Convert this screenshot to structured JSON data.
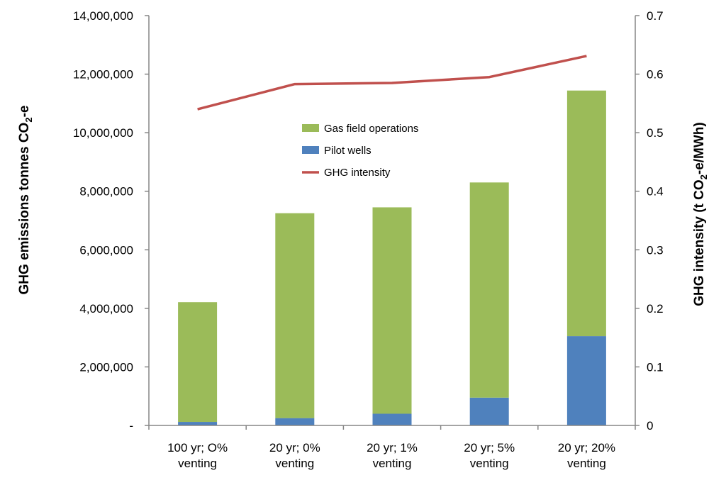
{
  "chart_data": {
    "type": "bar",
    "stacked": true,
    "categories": [
      [
        "100 yr; O%",
        "venting"
      ],
      [
        "20 yr; 0%",
        "venting"
      ],
      [
        "20 yr; 1%",
        "venting"
      ],
      [
        "20 yr; 5%",
        "venting"
      ],
      [
        "20 yr; 20%",
        "venting"
      ]
    ],
    "series": [
      {
        "name": "Pilot wells",
        "kind": "bar",
        "axis": "left",
        "color": "#4F81BD",
        "values": [
          120000,
          250000,
          400000,
          950000,
          3050000
        ]
      },
      {
        "name": "Gas field operations",
        "kind": "bar",
        "axis": "left",
        "color": "#9BBB59",
        "values": [
          4090000,
          7000000,
          7050000,
          7350000,
          8390000
        ]
      },
      {
        "name": "GHG intensity",
        "kind": "line",
        "axis": "right",
        "color": "#C0504D",
        "values": [
          0.54,
          0.583,
          0.585,
          0.595,
          0.631
        ]
      }
    ],
    "legend_order": [
      "Gas field operations",
      "Pilot wells",
      "GHG intensity"
    ],
    "legend_position": "center-top",
    "left_axis": {
      "title_main": "GHG emissions tonnes CO",
      "title_sub": "2",
      "title_tail": "-e",
      "ylim": [
        0,
        14000000
      ],
      "ticks": [
        0,
        2000000,
        4000000,
        6000000,
        8000000,
        10000000,
        12000000,
        14000000
      ],
      "tick_labels": [
        "-",
        "2,000,000",
        "4,000,000",
        "6,000,000",
        "8,000,000",
        "10,000,000",
        "12,000,000",
        "14,000,000"
      ]
    },
    "right_axis": {
      "title_main": "GHG intensity (t CO",
      "title_sub": "2",
      "title_tail": "-e/MWh)",
      "ylim": [
        0,
        0.7
      ],
      "ticks": [
        0,
        0.1,
        0.2,
        0.3,
        0.4,
        0.5,
        0.6,
        0.7
      ],
      "tick_labels": [
        "0",
        "0.1",
        "0.2",
        "0.3",
        "0.4",
        "0.5",
        "0.6",
        "0.7"
      ]
    },
    "grid": false
  }
}
